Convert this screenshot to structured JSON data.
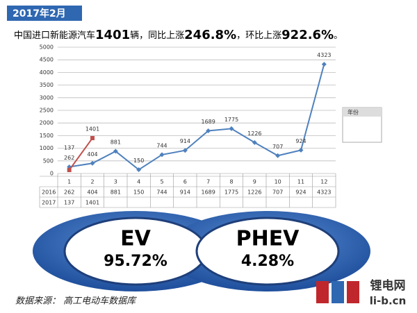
{
  "header": "2017年2月",
  "headline": [
    "中国进口新能源汽车",
    "1401",
    "辆，同比上涨",
    "246.8%",
    "，环比上涨",
    "922.6%",
    "。"
  ],
  "chart_data": {
    "type": "line",
    "categories": [
      "1",
      "2",
      "3",
      "4",
      "5",
      "6",
      "7",
      "8",
      "9",
      "10",
      "11",
      "12"
    ],
    "series": [
      {
        "name": "2016",
        "color": "#4f81bd",
        "values": [
          262,
          404,
          881,
          150,
          744,
          914,
          1689,
          1775,
          1226,
          707,
          924,
          4323
        ]
      },
      {
        "name": "2017",
        "color": "#c0504d",
        "values": [
          137,
          1401,
          null,
          null,
          null,
          null,
          null,
          null,
          null,
          null,
          null,
          null
        ]
      }
    ],
    "ylim": [
      0,
      5000
    ],
    "yticks": [
      0,
      500,
      1000,
      1500,
      2000,
      2500,
      3000,
      3500,
      4000,
      4500,
      5000
    ],
    "grid": true,
    "legend_title": "年份",
    "legend": "right"
  },
  "shares": [
    {
      "label": "EV",
      "value": "95.72%"
    },
    {
      "label": "PHEV",
      "value": "4.28%"
    }
  ],
  "source": "数据来源： 高工电动车数据库",
  "logo": {
    "name": "锂电网",
    "url": "li-b.cn"
  }
}
